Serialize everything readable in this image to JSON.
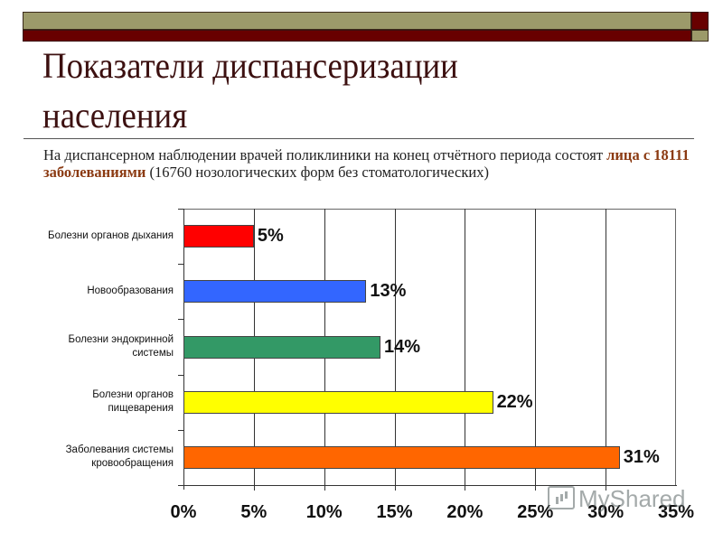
{
  "slide": {
    "title_line1": "Показатели диспансеризации",
    "title_line2": "населения",
    "subtitle_part1": "На диспансерном наблюдении врачей поликлиники на конец  отчётного периода состоят ",
    "subtitle_highlight": "лица с 18111 заболеваниями",
    "subtitle_part2": " (16760 нозологических форм без стоматологических)",
    "colors": {
      "accent_olive": "#9c9a6a",
      "accent_maroon": "#680000",
      "highlight_text": "#8b3a12"
    }
  },
  "watermark": {
    "text": "MyShared"
  },
  "chart_data": {
    "type": "bar",
    "orientation": "horizontal",
    "title": "",
    "xlabel": "",
    "ylabel": "",
    "xlim": [
      0,
      35
    ],
    "grid": true,
    "legend": "none",
    "categories": [
      "Болезни органов дыхания",
      "Новообразования",
      "Болезни эндокринной системы",
      "Болезни органов пищеварения",
      "Заболевания системы кровообращения"
    ],
    "values": [
      5,
      13,
      14,
      22,
      31
    ],
    "data_labels": [
      "5%",
      "13%",
      "14%",
      "22%",
      "31%"
    ],
    "bar_colors": [
      "#ff0000",
      "#3366ff",
      "#339966",
      "#ffff00",
      "#ff6600"
    ],
    "x_tick_labels": [
      "0%",
      "5%",
      "10%",
      "15%",
      "20%",
      "25%",
      "30%",
      "35%"
    ],
    "x_ticks": [
      0,
      5,
      10,
      15,
      20,
      25,
      30,
      35
    ],
    "category_label_lines": [
      [
        "Болезни органов дыхания"
      ],
      [
        "Новообразования"
      ],
      [
        "Болезни эндокринной",
        "системы"
      ],
      [
        "Болезни органов",
        "пищеварения"
      ],
      [
        "Заболевания системы",
        "кровообращения"
      ]
    ]
  }
}
